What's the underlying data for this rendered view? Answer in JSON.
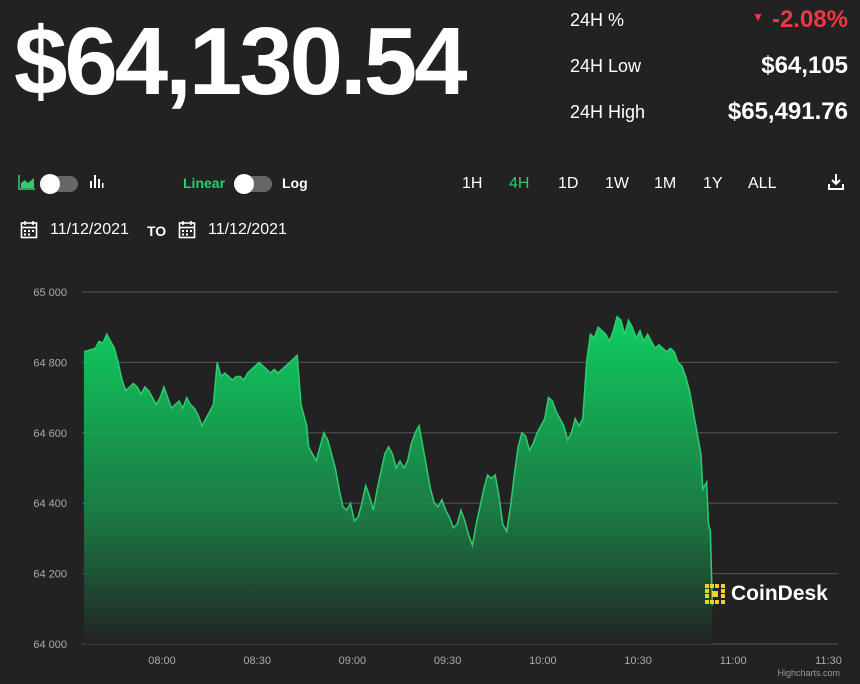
{
  "price": {
    "value": "$64,130.54"
  },
  "stats": {
    "change_label": "24H %",
    "change_value": "-2.08%",
    "low_label": "24H Low",
    "low_value": "$64,105",
    "high_label": "24H High",
    "high_value": "$65,491.76"
  },
  "toolbar": {
    "chart_type_icons": [
      "area-chart-icon",
      "bar-chart-icon"
    ],
    "scale_linear": "Linear",
    "scale_log": "Log",
    "ranges": [
      "1H",
      "4H",
      "1D",
      "1W",
      "1M",
      "1Y",
      "ALL"
    ],
    "active_range": "4H",
    "download_icon": "download-icon"
  },
  "dates": {
    "from": "11/12/2021",
    "to_label": "TO",
    "to": "11/12/2021"
  },
  "logo": {
    "text": "CoinDesk"
  },
  "credit": "Highcharts.com",
  "colors": {
    "accent": "#2ecc71",
    "negative": "#f23645",
    "background": "#222222"
  },
  "chart_data": {
    "type": "area",
    "xlabel": "",
    "ylabel": "",
    "ylim": [
      64000,
      65000
    ],
    "yticks": [
      "64 000",
      "64 200",
      "64 400",
      "64 600",
      "64 800",
      "65 000"
    ],
    "xticks": [
      {
        "t": 8.0,
        "label": "08:00"
      },
      {
        "t": 8.5,
        "label": "08:30"
      },
      {
        "t": 9.0,
        "label": "09:00"
      },
      {
        "t": 9.5,
        "label": "09:30"
      },
      {
        "t": 10.0,
        "label": "10:00"
      },
      {
        "t": 10.5,
        "label": "10:30"
      },
      {
        "t": 11.0,
        "label": "11:00"
      },
      {
        "t": 11.5,
        "label": "11:30"
      }
    ],
    "xlim": [
      7.58,
      11.55
    ],
    "series": [
      {
        "points": [
          [
            7.59,
            64830
          ],
          [
            7.62,
            64835
          ],
          [
            7.65,
            64840
          ],
          [
            7.67,
            64860
          ],
          [
            7.69,
            64855
          ],
          [
            7.71,
            64880
          ],
          [
            7.73,
            64860
          ],
          [
            7.75,
            64840
          ],
          [
            7.77,
            64800
          ],
          [
            7.79,
            64750
          ],
          [
            7.81,
            64720
          ],
          [
            7.83,
            64730
          ],
          [
            7.85,
            64740
          ],
          [
            7.87,
            64730
          ],
          [
            7.89,
            64710
          ],
          [
            7.91,
            64730
          ],
          [
            7.93,
            64720
          ],
          [
            7.95,
            64700
          ],
          [
            7.97,
            64680
          ],
          [
            7.99,
            64700
          ],
          [
            8.01,
            64730
          ],
          [
            8.03,
            64700
          ],
          [
            8.05,
            64670
          ],
          [
            8.07,
            64680
          ],
          [
            8.09,
            64690
          ],
          [
            8.11,
            64670
          ],
          [
            8.13,
            64700
          ],
          [
            8.15,
            64680
          ],
          [
            8.17,
            64670
          ],
          [
            8.19,
            64650
          ],
          [
            8.21,
            64620
          ],
          [
            8.23,
            64640
          ],
          [
            8.25,
            64660
          ],
          [
            8.27,
            64680
          ],
          [
            8.29,
            64800
          ],
          [
            8.31,
            64760
          ],
          [
            8.33,
            64770
          ],
          [
            8.35,
            64760
          ],
          [
            8.37,
            64750
          ],
          [
            8.39,
            64760
          ],
          [
            8.41,
            64760
          ],
          [
            8.43,
            64750
          ],
          [
            8.45,
            64770
          ],
          [
            8.47,
            64780
          ],
          [
            8.49,
            64790
          ],
          [
            8.51,
            64800
          ],
          [
            8.53,
            64790
          ],
          [
            8.55,
            64780
          ],
          [
            8.57,
            64770
          ],
          [
            8.59,
            64780
          ],
          [
            8.61,
            64770
          ],
          [
            8.63,
            64780
          ],
          [
            8.65,
            64790
          ],
          [
            8.67,
            64800
          ],
          [
            8.69,
            64810
          ],
          [
            8.71,
            64820
          ],
          [
            8.73,
            64680
          ],
          [
            8.75,
            64640
          ],
          [
            8.76,
            64620
          ],
          [
            8.77,
            64560
          ],
          [
            8.79,
            64540
          ],
          [
            8.81,
            64520
          ],
          [
            8.83,
            64560
          ],
          [
            8.85,
            64600
          ],
          [
            8.87,
            64580
          ],
          [
            8.89,
            64540
          ],
          [
            8.91,
            64500
          ],
          [
            8.93,
            64440
          ],
          [
            8.95,
            64390
          ],
          [
            8.97,
            64380
          ],
          [
            8.99,
            64400
          ],
          [
            9.01,
            64350
          ],
          [
            9.03,
            64360
          ],
          [
            9.05,
            64400
          ],
          [
            9.07,
            64450
          ],
          [
            9.09,
            64420
          ],
          [
            9.11,
            64380
          ],
          [
            9.13,
            64440
          ],
          [
            9.15,
            64490
          ],
          [
            9.17,
            64540
          ],
          [
            9.19,
            64560
          ],
          [
            9.21,
            64540
          ],
          [
            9.23,
            64500
          ],
          [
            9.25,
            64520
          ],
          [
            9.27,
            64500
          ],
          [
            9.29,
            64520
          ],
          [
            9.31,
            64570
          ],
          [
            9.33,
            64600
          ],
          [
            9.35,
            64620
          ],
          [
            9.37,
            64560
          ],
          [
            9.39,
            64500
          ],
          [
            9.41,
            64440
          ],
          [
            9.43,
            64400
          ],
          [
            9.45,
            64390
          ],
          [
            9.47,
            64410
          ],
          [
            9.49,
            64380
          ],
          [
            9.51,
            64360
          ],
          [
            9.53,
            64330
          ],
          [
            9.55,
            64340
          ],
          [
            9.57,
            64380
          ],
          [
            9.59,
            64350
          ],
          [
            9.61,
            64310
          ],
          [
            9.63,
            64280
          ],
          [
            9.65,
            64340
          ],
          [
            9.67,
            64390
          ],
          [
            9.69,
            64440
          ],
          [
            9.71,
            64480
          ],
          [
            9.73,
            64470
          ],
          [
            9.75,
            64480
          ],
          [
            9.77,
            64420
          ],
          [
            9.79,
            64340
          ],
          [
            9.81,
            64320
          ],
          [
            9.83,
            64390
          ],
          [
            9.85,
            64480
          ],
          [
            9.87,
            64560
          ],
          [
            9.89,
            64600
          ],
          [
            9.91,
            64590
          ],
          [
            9.93,
            64550
          ],
          [
            9.95,
            64570
          ],
          [
            9.97,
            64600
          ],
          [
            9.99,
            64620
          ],
          [
            10.01,
            64640
          ],
          [
            10.03,
            64700
          ],
          [
            10.05,
            64690
          ],
          [
            10.07,
            64660
          ],
          [
            10.09,
            64640
          ],
          [
            10.11,
            64620
          ],
          [
            10.13,
            64580
          ],
          [
            10.15,
            64600
          ],
          [
            10.17,
            64640
          ],
          [
            10.19,
            64620
          ],
          [
            10.21,
            64640
          ],
          [
            10.23,
            64800
          ],
          [
            10.25,
            64880
          ],
          [
            10.27,
            64870
          ],
          [
            10.29,
            64900
          ],
          [
            10.31,
            64890
          ],
          [
            10.33,
            64880
          ],
          [
            10.35,
            64860
          ],
          [
            10.37,
            64890
          ],
          [
            10.39,
            64930
          ],
          [
            10.41,
            64920
          ],
          [
            10.43,
            64880
          ],
          [
            10.45,
            64920
          ],
          [
            10.47,
            64900
          ],
          [
            10.49,
            64870
          ],
          [
            10.51,
            64890
          ],
          [
            10.53,
            64860
          ],
          [
            10.55,
            64880
          ],
          [
            10.57,
            64860
          ],
          [
            10.59,
            64840
          ],
          [
            10.61,
            64850
          ],
          [
            10.63,
            64840
          ],
          [
            10.65,
            64830
          ],
          [
            10.67,
            64840
          ],
          [
            10.69,
            64830
          ],
          [
            10.71,
            64800
          ],
          [
            10.73,
            64790
          ],
          [
            10.75,
            64760
          ],
          [
            10.77,
            64720
          ],
          [
            10.79,
            64660
          ],
          [
            10.81,
            64600
          ],
          [
            10.83,
            64540
          ],
          [
            10.84,
            64440
          ],
          [
            10.86,
            64460
          ],
          [
            10.87,
            64340
          ],
          [
            10.88,
            64320
          ],
          [
            10.89,
            64110
          ]
        ]
      }
    ]
  }
}
